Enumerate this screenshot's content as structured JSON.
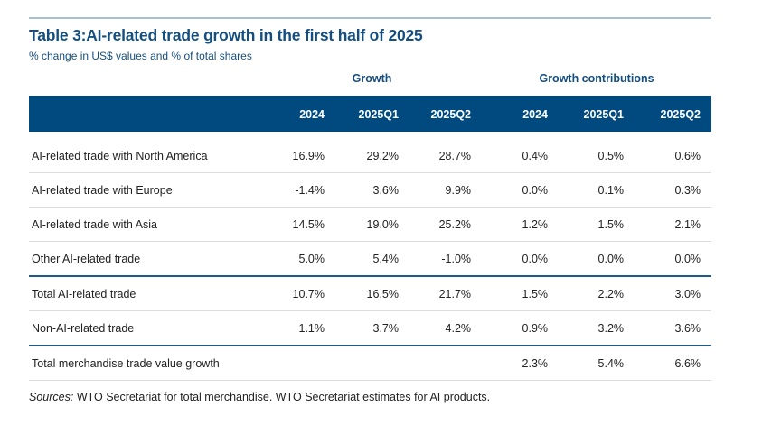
{
  "title": "Table 3:AI-related trade growth in the first half of 2025",
  "subtitle": "% change in US$ values and % of total shares",
  "groups": {
    "growth": "Growth",
    "contributions": "Growth contributions"
  },
  "columns": [
    "2024",
    "2025Q1",
    "2025Q2",
    "2024",
    "2025Q1",
    "2025Q2"
  ],
  "rows": [
    {
      "label": "AI-related trade with North America",
      "values": [
        "16.9%",
        "29.2%",
        "28.7%",
        "0.4%",
        "0.5%",
        "0.6%"
      ]
    },
    {
      "label": "AI-related trade with Europe",
      "values": [
        "-1.4%",
        "3.6%",
        "9.9%",
        "0.0%",
        "0.1%",
        "0.3%"
      ]
    },
    {
      "label": "AI-related trade with Asia",
      "values": [
        "14.5%",
        "19.0%",
        "25.2%",
        "1.2%",
        "1.5%",
        "2.1%"
      ]
    },
    {
      "label": "Other AI-related trade",
      "values": [
        "5.0%",
        "5.4%",
        "-1.0%",
        "0.0%",
        "0.0%",
        "0.0%"
      ]
    },
    {
      "label": "Total AI-related trade",
      "values": [
        "10.7%",
        "16.5%",
        "21.7%",
        "1.5%",
        "2.2%",
        "3.0%"
      ]
    },
    {
      "label": "Non-AI-related trade",
      "values": [
        "1.1%",
        "3.7%",
        "4.2%",
        "0.9%",
        "3.2%",
        "3.6%"
      ]
    },
    {
      "label": "Total merchandise trade value growth",
      "values": [
        "",
        "",
        "",
        "2.3%",
        "5.4%",
        "6.6%"
      ]
    }
  ],
  "sources": {
    "label": "Sources:",
    "text": " WTO Secretariat for total merchandise. WTO Secretariat estimates for AI products."
  },
  "colors": {
    "accent": "#004a80",
    "title": "#154e80"
  }
}
